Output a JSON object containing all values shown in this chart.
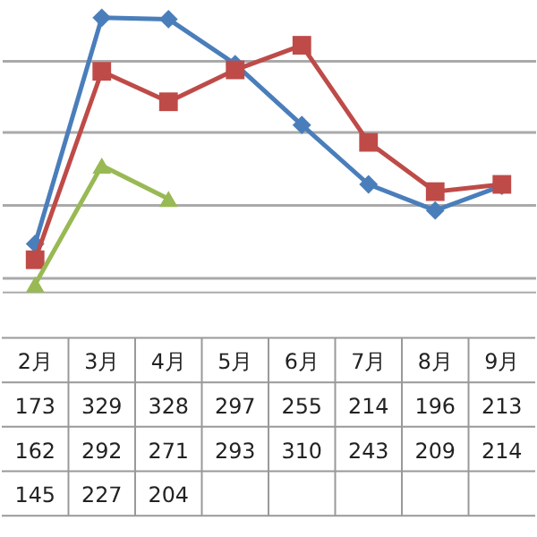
{
  "chart_data": {
    "type": "line",
    "categories": [
      "2月",
      "3月",
      "4月",
      "5月",
      "6月",
      "7月",
      "8月",
      "9月"
    ],
    "series": [
      {
        "color": "#4a7ebb",
        "marker": "diamond",
        "values": [
          173,
          329,
          328,
          297,
          255,
          214,
          196,
          213
        ]
      },
      {
        "color": "#be4b48",
        "marker": "square",
        "values": [
          162,
          292,
          271,
          293,
          310,
          243,
          209,
          214
        ]
      },
      {
        "color": "#98b954",
        "marker": "triangle",
        "values": [
          145,
          227,
          204,
          null,
          null,
          null,
          null,
          null
        ]
      }
    ],
    "grid": "y",
    "tick_labels": false,
    "data_labels": true
  }
}
